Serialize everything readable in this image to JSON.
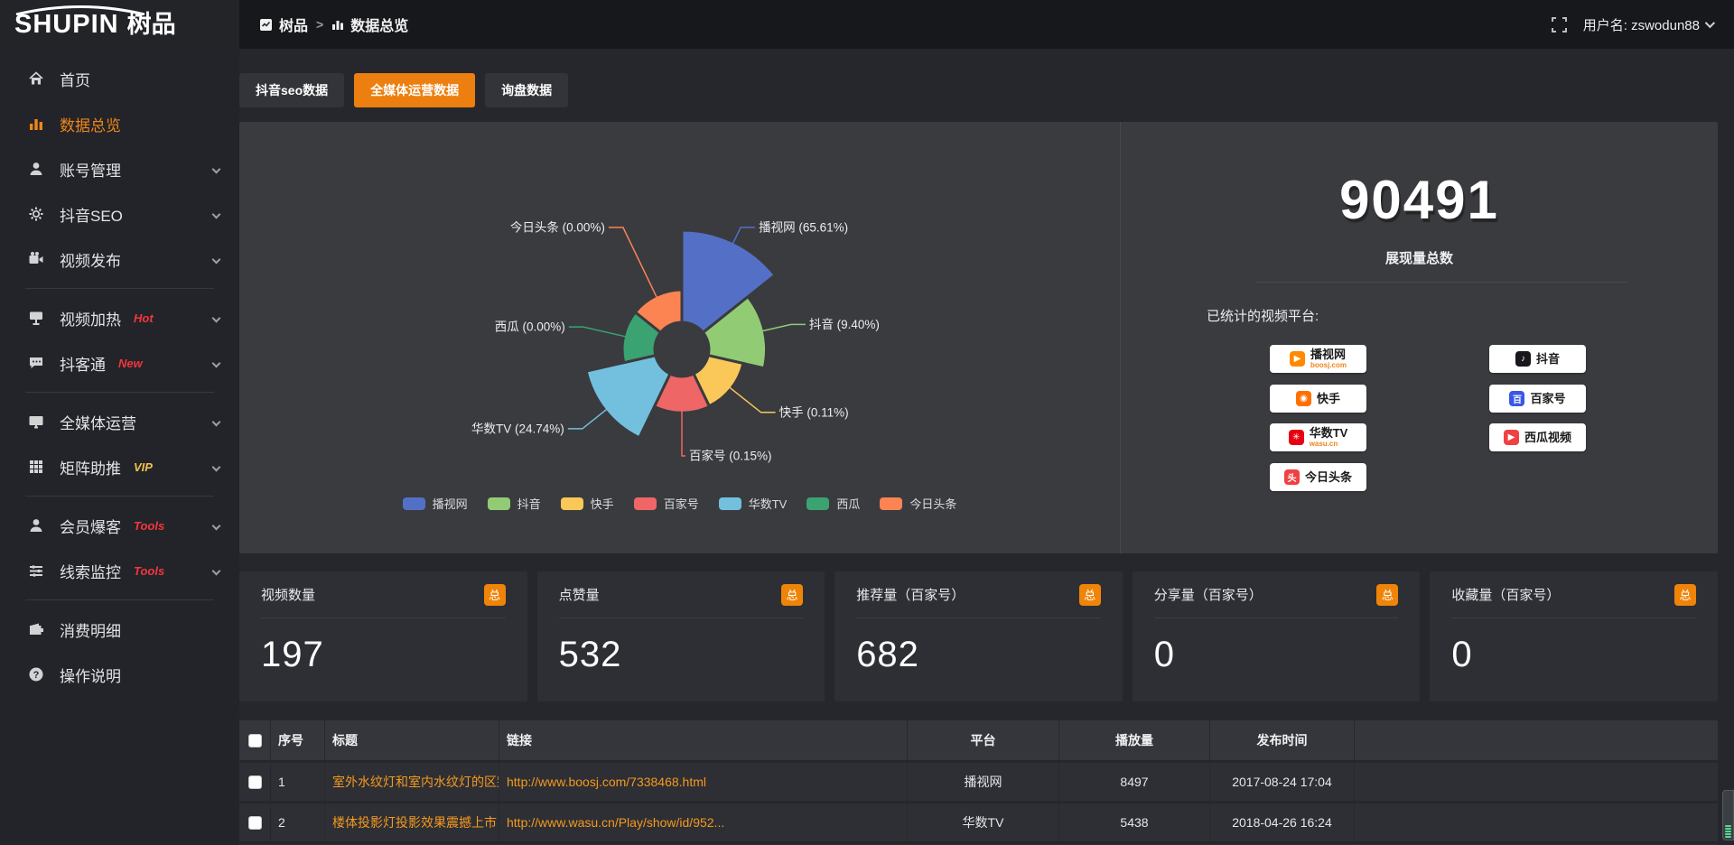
{
  "logo": {
    "latin": "SHUPIN",
    "cn": "树品"
  },
  "topbar": {
    "breadcrumb": [
      {
        "label": "树品"
      },
      {
        "label": "数据总览"
      }
    ],
    "separator": ">",
    "username": "用户名: zswodun88"
  },
  "sidebar": {
    "items": [
      {
        "label": "首页",
        "icon": "home-icon"
      },
      {
        "label": "数据总览",
        "icon": "bar-chart-icon",
        "active": true
      },
      {
        "label": "账号管理",
        "icon": "user-icon",
        "chevron": true
      },
      {
        "label": "抖音SEO",
        "icon": "gear-icon",
        "chevron": true
      },
      {
        "label": "视频发布",
        "icon": "video-icon",
        "chevron": true,
        "dividerAfter": true
      },
      {
        "label": "视频加热",
        "icon": "heat-icon",
        "chevron": true,
        "badge": "Hot",
        "badgeColor": "#f5353d"
      },
      {
        "label": "抖客通",
        "icon": "chat-icon",
        "chevron": true,
        "badge": "New",
        "badgeColor": "#f5353d",
        "dividerAfter": true
      },
      {
        "label": "全媒体运营",
        "icon": "monitor-icon",
        "chevron": true
      },
      {
        "label": "矩阵助推",
        "icon": "grid-icon",
        "chevron": true,
        "badge": "VIP",
        "badgeColor": "#f2c24a",
        "dividerAfter": true
      },
      {
        "label": "会员爆客",
        "icon": "member-icon",
        "chevron": true,
        "badge": "Tools",
        "badgeColor": "#f5353d"
      },
      {
        "label": "线索监控",
        "icon": "sliders-icon",
        "chevron": true,
        "badge": "Tools",
        "badgeColor": "#f5353d",
        "dividerAfter": true
      },
      {
        "label": "消费明细",
        "icon": "wallet-icon"
      },
      {
        "label": "操作说明",
        "icon": "question-icon"
      }
    ]
  },
  "tabs": [
    {
      "label": "抖音seo数据",
      "active": false
    },
    {
      "label": "全媒体运营数据",
      "active": true
    },
    {
      "label": "询盘数据",
      "active": false
    }
  ],
  "chart_data": {
    "type": "pie",
    "subtype": "nightingale-rose",
    "legend_position": "bottom",
    "label_format": "{name} ({pct}%)",
    "series": [
      {
        "name": "播视网",
        "pct": 65.61,
        "color": "#5470c6"
      },
      {
        "name": "抖音",
        "pct": 9.4,
        "color": "#91cc75"
      },
      {
        "name": "快手",
        "pct": 0.11,
        "color": "#fac858"
      },
      {
        "name": "百家号",
        "pct": 0.15,
        "color": "#ee6666"
      },
      {
        "name": "华数TV",
        "pct": 24.74,
        "color": "#73c0de"
      },
      {
        "name": "西瓜",
        "pct": 0.0,
        "color": "#3ba272"
      },
      {
        "name": "今日头条",
        "pct": 0.0,
        "color": "#fc8452"
      }
    ]
  },
  "summary": {
    "total": "90491",
    "total_label": "展现量总数",
    "platforms_label": "已统计的视频平台:",
    "chips_left": [
      {
        "name": "播视网",
        "sub": "boosj.com",
        "icon": "play-circle-icon",
        "color": "#ff8a00"
      },
      {
        "name": "快手",
        "sub": "",
        "icon": "kuaishou-icon",
        "color": "#ff7000"
      },
      {
        "name": "华数TV",
        "sub": "wasu.cn",
        "icon": "burst-icon",
        "color": "#e60012"
      },
      {
        "name": "今日头条",
        "sub": "",
        "icon": "toutiao-icon",
        "color": "#f04142"
      }
    ],
    "chips_right": [
      {
        "name": "抖音",
        "sub": "",
        "icon": "music-note-icon",
        "color": "#17171c"
      },
      {
        "name": "百家号",
        "sub": "",
        "icon": "baijia-icon",
        "color": "#3a57e8"
      },
      {
        "name": "西瓜视频",
        "sub": "",
        "icon": "play-circle-icon",
        "color": "#f04142"
      }
    ]
  },
  "stat_cards": [
    {
      "title": "视频数量",
      "badge": "总",
      "value": "197"
    },
    {
      "title": "点赞量",
      "badge": "总",
      "value": "532"
    },
    {
      "title": "推荐量（百家号）",
      "badge": "总",
      "value": "682"
    },
    {
      "title": "分享量（百家号）",
      "badge": "总",
      "value": "0"
    },
    {
      "title": "收藏量（百家号）",
      "badge": "总",
      "value": "0"
    }
  ],
  "table": {
    "headers": {
      "seq": "序号",
      "title": "标题",
      "link": "链接",
      "platform": "平台",
      "plays": "播放量",
      "time": "发布时间"
    },
    "rows": [
      {
        "seq": "1",
        "title": "室外水纹灯和室内水纹灯的区别和简介",
        "link": "http://www.boosj.com/7338468.html",
        "platform": "播视网",
        "plays": "8497",
        "time": "2017-08-24 17:04"
      },
      {
        "seq": "2",
        "title": "楼体投影灯投影效果震撼上市",
        "link": "http://www.wasu.cn/Play/show/id/952...",
        "platform": "华数TV",
        "plays": "5438",
        "time": "2018-04-26 16:24"
      }
    ]
  }
}
